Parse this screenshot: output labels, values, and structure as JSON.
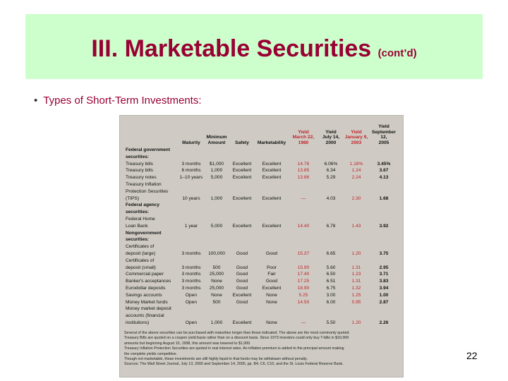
{
  "slide": {
    "title": "III. Marketable Securities",
    "title_suffix": "(cont’d)",
    "bullet": "Types of Short-Term Investments:",
    "page_number": "22"
  },
  "table": {
    "headers": [
      "",
      "Maturity",
      "Minimum Amount",
      "Safety",
      "Marketability",
      "Yield March 22, 1980",
      "Yield July 14, 2000",
      "Yield January 9, 2003",
      "Yield September 12, 2005"
    ],
    "rows": [
      {
        "bold": true,
        "cells": [
          "Federal government",
          "",
          "",
          "",
          "",
          "",
          "",
          "",
          ""
        ]
      },
      {
        "bold": true,
        "cells": [
          "securities:",
          "",
          "",
          "",
          "",
          "",
          "",
          "",
          ""
        ]
      },
      {
        "bold": false,
        "cells": [
          "Treasury bills",
          "3 months",
          "$1,000",
          "Excellent",
          "Excellent",
          "14.76",
          "6.06%",
          "1.18%",
          "3.45%"
        ]
      },
      {
        "bold": false,
        "cells": [
          "Treasury bills",
          "6 months",
          "1,000",
          "Excellent",
          "Excellent",
          "13.85",
          "6.34",
          "1.24",
          "3.67"
        ]
      },
      {
        "bold": false,
        "cells": [
          "Treasury notes",
          "1–10 years",
          "5,000",
          "Excellent",
          "Excellent",
          "13.86",
          "5.29",
          "2.24",
          "4.13"
        ]
      },
      {
        "bold": false,
        "cells": [
          "Treasury Inflation",
          "",
          "",
          "",
          "",
          "",
          "",
          "",
          ""
        ]
      },
      {
        "bold": false,
        "cells": [
          "Protection Securities",
          "",
          "",
          "",
          "",
          "",
          "",
          "",
          ""
        ]
      },
      {
        "bold": false,
        "cells": [
          "(TIPS)",
          "10 years",
          "1,000",
          "Excellent",
          "Excellent",
          "—",
          "4.03",
          "2.30",
          "1.68"
        ]
      },
      {
        "bold": true,
        "cells": [
          "Federal agency",
          "",
          "",
          "",
          "",
          "",
          "",
          "",
          ""
        ]
      },
      {
        "bold": true,
        "cells": [
          "securities:",
          "",
          "",
          "",
          "",
          "",
          "",
          "",
          ""
        ]
      },
      {
        "bold": false,
        "cells": [
          "Federal Home",
          "",
          "",
          "",
          "",
          "",
          "",
          "",
          ""
        ]
      },
      {
        "bold": false,
        "cells": [
          "Loan Bank",
          "1 year",
          "5,000",
          "Excellent",
          "Excellent",
          "14.40",
          "6.78",
          "1.43",
          "3.92"
        ]
      },
      {
        "bold": true,
        "cells": [
          "Nongovernment",
          "",
          "",
          "",
          "",
          "",
          "",
          "",
          ""
        ]
      },
      {
        "bold": true,
        "cells": [
          "securities:",
          "",
          "",
          "",
          "",
          "",
          "",
          "",
          ""
        ]
      },
      {
        "bold": false,
        "cells": [
          "Certificates of",
          "",
          "",
          "",
          "",
          "",
          "",
          "",
          ""
        ]
      },
      {
        "bold": false,
        "cells": [
          "deposit (large)",
          "3 months",
          "100,000",
          "Good",
          "Good",
          "15.37",
          "6.65",
          "1.20",
          "3.75"
        ]
      },
      {
        "bold": false,
        "cells": [
          "Certificates of",
          "",
          "",
          "",
          "",
          "",
          "",
          "",
          ""
        ]
      },
      {
        "bold": false,
        "cells": [
          "deposit (small)",
          "3 months",
          "500",
          "Good",
          "Poor",
          "15.90",
          "5.60",
          "1.31",
          "2.95"
        ]
      },
      {
        "bold": false,
        "cells": [
          "Commercial paper",
          "3 months",
          "25,000",
          "Good",
          "Fair",
          "17.40",
          "6.50",
          "1.23",
          "3.71"
        ]
      },
      {
        "bold": false,
        "cells": [
          "Banker's acceptances",
          "3 months",
          "None",
          "Good",
          "Good",
          "17.25",
          "6.51",
          "1.31",
          "3.83"
        ]
      },
      {
        "bold": false,
        "cells": [
          "Eurodollar deposits",
          "3 months",
          "25,000",
          "Good",
          "Excellent",
          "18.90",
          "6.75",
          "1.32",
          "3.94"
        ]
      },
      {
        "bold": false,
        "cells": [
          "Savings accounts",
          "Open",
          "None",
          "Excellent",
          "None",
          "5.25",
          "3.00",
          "1.25",
          "1.00"
        ]
      },
      {
        "bold": false,
        "cells": [
          "Money Market funds",
          "Open",
          "500",
          "Good",
          "None",
          "14.50",
          "6.00",
          "0.95",
          "2.87"
        ]
      },
      {
        "bold": false,
        "cells": [
          "Money market deposit",
          "",
          "",
          "",
          "",
          "",
          "",
          "",
          ""
        ]
      },
      {
        "bold": false,
        "cells": [
          "accounts (financial",
          "",
          "",
          "",
          "",
          "",
          "",
          "",
          ""
        ]
      },
      {
        "bold": false,
        "cells": [
          "institutions)",
          "Open",
          "1,000",
          "Excellent",
          "None",
          "—",
          "5.50",
          "1.20",
          "2.26"
        ]
      }
    ],
    "notes": [
      "Several of the above securities can be purchased with maturities longer than those indicated. The above are the most commonly quoted.",
      "Treasury Bills are quoted on a coupon yield basis rather than on a discount basis. Since 1973 investors could only buy T-bills in $10,000",
      "amounts but beginning August 10, 1998, this amount was lowered to $1,000.",
      "Treasury Inflation Protection Securities are quoted in real interest rates. An inflation premium is added to the principal amount making",
      "the complete yields competitive.",
      "Though not marketable, these investments are still highly liquid in that funds may be withdrawn without penalty.",
      "Sources: The Wall Street Journal, July 13, 2000 and September 14, 2005, pp. B4, C6, C10, and the St. Louis Federal Reserve Bank."
    ]
  }
}
